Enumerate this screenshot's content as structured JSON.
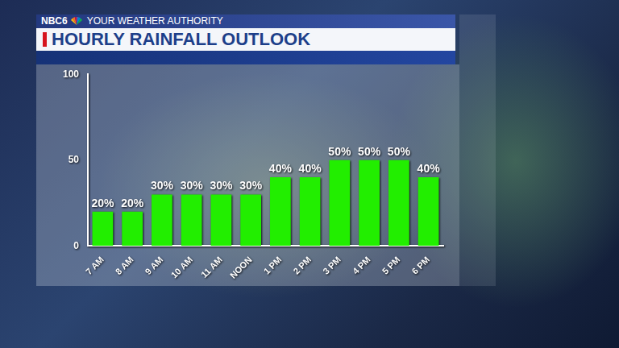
{
  "header": {
    "brand": "NBC6",
    "tagline": "YOUR WEATHER AUTHORITY"
  },
  "chart_data": {
    "type": "bar",
    "title": "HOURLY RAINFALL OUTLOOK",
    "categories": [
      "7 AM",
      "8 AM",
      "9 AM",
      "10 AM",
      "11 AM",
      "NOON",
      "1 PM",
      "2 PM",
      "3 PM",
      "4 PM",
      "5 PM",
      "6 PM"
    ],
    "values": [
      20,
      20,
      30,
      30,
      30,
      30,
      40,
      40,
      50,
      50,
      50,
      40
    ],
    "value_labels": [
      "20%",
      "20%",
      "30%",
      "30%",
      "30%",
      "30%",
      "40%",
      "40%",
      "50%",
      "50%",
      "50%",
      "40%"
    ],
    "color": "#22ee00",
    "ylim": [
      0,
      100
    ],
    "yticks": [
      0,
      50,
      100
    ],
    "grid": false,
    "data_labels": true
  }
}
